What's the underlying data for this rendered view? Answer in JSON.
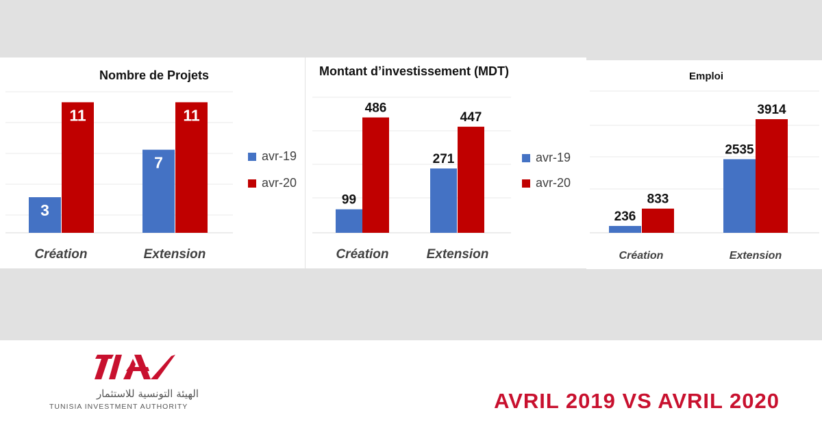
{
  "chart_data": [
    {
      "type": "bar",
      "title": "Nombre de Projets",
      "categories": [
        "Création",
        "Extension"
      ],
      "series": [
        {
          "name": "avr-19",
          "values": [
            3,
            7
          ]
        },
        {
          "name": "avr-20",
          "values": [
            11,
            11
          ]
        }
      ],
      "ylim": [
        0,
        12
      ],
      "grid": true,
      "legend": "right"
    },
    {
      "type": "bar",
      "title": "Montant d’investissement (MDT)",
      "categories": [
        "Création",
        "Extension"
      ],
      "series": [
        {
          "name": "avr-19",
          "values": [
            99,
            271
          ]
        },
        {
          "name": "avr-20",
          "values": [
            486,
            447
          ]
        }
      ],
      "ylim": [
        0,
        600
      ],
      "grid": true,
      "legend": "right"
    },
    {
      "type": "bar",
      "title": "Emploi",
      "categories": [
        "Création",
        "Extension"
      ],
      "series": [
        {
          "name": "avr-19",
          "values": [
            236,
            2535
          ]
        },
        {
          "name": "avr-20",
          "values": [
            833,
            3914
          ]
        }
      ],
      "ylim": [
        0,
        5000
      ],
      "grid": true,
      "legend": "none"
    }
  ],
  "colors": {
    "avr19": "#4472c4",
    "avr20": "#c00000",
    "brand": "#c8102e"
  },
  "footer": {
    "logo_text": "TIA",
    "logo_arabic": "الهيئة التونسية للاستثمار",
    "logo_english": "TUNISIA INVESTMENT AUTHORITY",
    "headline": "AVRIL 2019 VS AVRIL 2020"
  }
}
